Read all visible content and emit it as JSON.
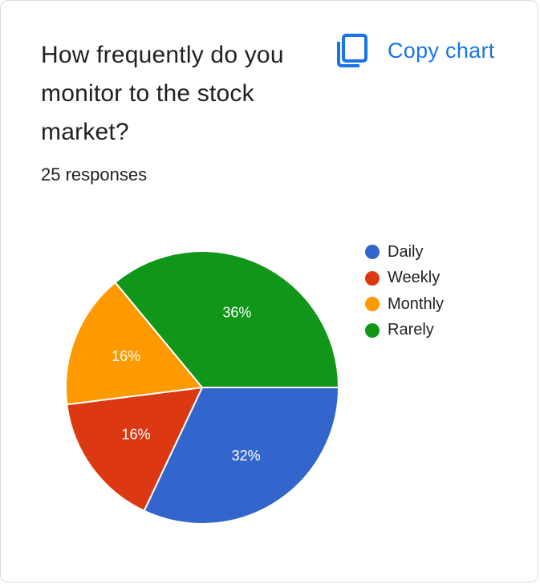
{
  "card": {
    "title": "How frequently do you monitor to the stock market?",
    "responses": "25 responses",
    "copy_label": "Copy chart"
  },
  "colors": {
    "accent": "#1a73e8"
  },
  "chart_data": {
    "type": "pie",
    "title": "How frequently do you monitor to the stock market?",
    "total_responses": 25,
    "slices": [
      {
        "label": "Daily",
        "value": 32,
        "display": "32%",
        "color": "#3366cc"
      },
      {
        "label": "Weekly",
        "value": 16,
        "display": "16%",
        "color": "#dc3912"
      },
      {
        "label": "Monthly",
        "value": 16,
        "display": "16%",
        "color": "#ff9900"
      },
      {
        "label": "Rarely",
        "value": 36,
        "display": "36%",
        "color": "#109618"
      }
    ],
    "legend_position": "right"
  }
}
